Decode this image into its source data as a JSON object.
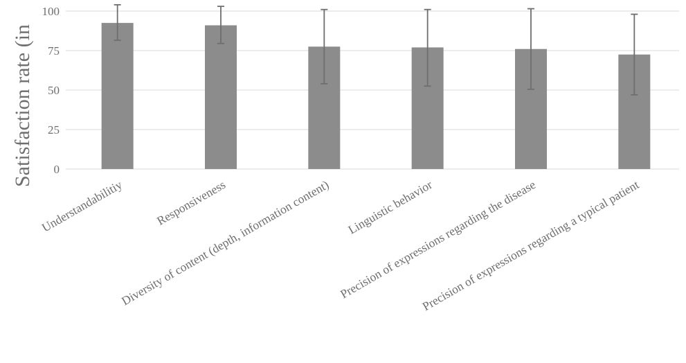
{
  "chart_data": {
    "type": "bar",
    "title": "",
    "xlabel": "",
    "ylabel": "Satisfaction rate (in",
    "ylim": [
      0,
      100
    ],
    "yticks": [
      0,
      25,
      50,
      75,
      100
    ],
    "grid": true,
    "categories": [
      "Understandabilitiy",
      "Responsiveness",
      "Diversity of content (depth, information content)",
      "Linguistic behavior",
      "Precision of expressions regarding the disease",
      "Precision of expressions regarding a typical patient"
    ],
    "values": [
      92.5,
      91,
      77.5,
      77,
      76,
      72.5
    ],
    "error_low": [
      81.5,
      79.5,
      54,
      52.5,
      50.5,
      47
    ],
    "error_high": [
      104,
      103,
      101,
      101,
      101.5,
      98
    ],
    "colors": {
      "bar": "#8c8c8c",
      "error_bar": "#6e6e6e",
      "grid": "#d9d9d9",
      "text": "#6e6e6e"
    }
  }
}
